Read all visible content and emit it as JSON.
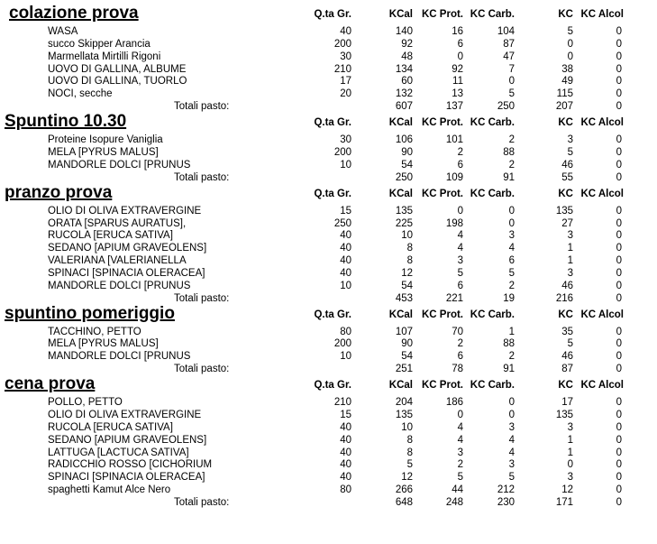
{
  "sections": [
    {
      "title": "colazione prova",
      "columns": [
        "Q.ta Gr.",
        "KCal",
        "KC Prot.",
        "KC Carb.",
        "KC",
        "KC Alcol"
      ],
      "rows": [
        {
          "name": "WASA",
          "values": [
            40,
            140,
            16,
            104,
            5,
            0
          ]
        },
        {
          "name": "succo Skipper Arancia",
          "values": [
            200,
            92,
            6,
            87,
            0,
            0
          ]
        },
        {
          "name": "Marmellata Mirtilli Rigoni",
          "values": [
            30,
            48,
            0,
            47,
            0,
            0
          ]
        },
        {
          "name": "UOVO DI GALLINA, ALBUME",
          "values": [
            210,
            134,
            92,
            7,
            38,
            0
          ]
        },
        {
          "name": "UOVO DI GALLINA, TUORLO",
          "values": [
            17,
            60,
            11,
            0,
            49,
            0
          ]
        },
        {
          "name": "NOCI, secche",
          "values": [
            20,
            132,
            13,
            5,
            115,
            0
          ]
        }
      ],
      "totals": {
        "label": "Totali pasto:",
        "values": [
          607,
          137,
          250,
          207,
          0
        ]
      }
    },
    {
      "title": "Spuntino 10.30",
      "columns": [
        "Q.ta Gr.",
        "KCal",
        "KC Prot.",
        "KC Carb.",
        "KC",
        "KC Alcol"
      ],
      "rows": [
        {
          "name": "Proteine Isopure Vaniglia",
          "values": [
            30,
            106,
            101,
            2,
            3,
            0
          ]
        },
        {
          "name": "MELA [PYRUS MALUS]",
          "values": [
            200,
            90,
            2,
            88,
            5,
            0
          ]
        },
        {
          "name": "MANDORLE DOLCI [PRUNUS",
          "values": [
            10,
            54,
            6,
            2,
            46,
            0
          ]
        }
      ],
      "totals": {
        "label": "Totali pasto:",
        "values": [
          250,
          109,
          91,
          55,
          0
        ]
      }
    },
    {
      "title": "pranzo prova",
      "columns": [
        "Q.ta Gr.",
        "KCal",
        "KC Prot.",
        "KC Carb.",
        "KC",
        "KC Alcol"
      ],
      "rows": [
        {
          "name": "OLIO DI OLIVA EXTRAVERGINE",
          "values": [
            15,
            135,
            0,
            0,
            135,
            0
          ]
        },
        {
          "name": "ORATA [SPARUS AURATUS],",
          "values": [
            250,
            225,
            198,
            0,
            27,
            0
          ]
        },
        {
          "name": "RUCOLA [ERUCA SATIVA]",
          "values": [
            40,
            10,
            4,
            3,
            3,
            0
          ]
        },
        {
          "name": "SEDANO [APIUM GRAVEOLENS]",
          "values": [
            40,
            8,
            4,
            4,
            1,
            0
          ]
        },
        {
          "name": "VALERIANA [VALERIANELLA",
          "values": [
            40,
            8,
            3,
            6,
            1,
            0
          ]
        },
        {
          "name": "SPINACI [SPINACIA OLERACEA]",
          "values": [
            40,
            12,
            5,
            5,
            3,
            0
          ]
        },
        {
          "name": "MANDORLE DOLCI [PRUNUS",
          "values": [
            10,
            54,
            6,
            2,
            46,
            0
          ]
        }
      ],
      "totals": {
        "label": "Totali pasto:",
        "values": [
          453,
          221,
          19,
          216,
          0
        ]
      }
    },
    {
      "title": "spuntino pomeriggio",
      "columns": [
        "Q.ta Gr.",
        "KCal",
        "KC Prot.",
        "KC Carb.",
        "KC",
        "KC Alcol"
      ],
      "rows": [
        {
          "name": "TACCHINO, PETTO",
          "values": [
            80,
            107,
            70,
            1,
            35,
            0
          ]
        },
        {
          "name": "MELA [PYRUS MALUS]",
          "values": [
            200,
            90,
            2,
            88,
            5,
            0
          ]
        },
        {
          "name": "MANDORLE DOLCI [PRUNUS",
          "values": [
            10,
            54,
            6,
            2,
            46,
            0
          ]
        }
      ],
      "totals": {
        "label": "Totali pasto:",
        "values": [
          251,
          78,
          91,
          87,
          0
        ]
      }
    },
    {
      "title": "cena prova",
      "columns": [
        "Q.ta Gr.",
        "KCal",
        "KC Prot.",
        "KC Carb.",
        "KC",
        "KC Alcol"
      ],
      "rows": [
        {
          "name": "POLLO, PETTO",
          "values": [
            210,
            204,
            186,
            0,
            17,
            0
          ]
        },
        {
          "name": "OLIO DI OLIVA EXTRAVERGINE",
          "values": [
            15,
            135,
            0,
            0,
            135,
            0
          ]
        },
        {
          "name": "RUCOLA [ERUCA SATIVA]",
          "values": [
            40,
            10,
            4,
            3,
            3,
            0
          ]
        },
        {
          "name": "SEDANO [APIUM GRAVEOLENS]",
          "values": [
            40,
            8,
            4,
            4,
            1,
            0
          ]
        },
        {
          "name": "LATTUGA [LACTUCA SATIVA]",
          "values": [
            40,
            8,
            3,
            4,
            1,
            0
          ]
        },
        {
          "name": "RADICCHIO ROSSO [CICHORIUM",
          "values": [
            40,
            5,
            2,
            3,
            0,
            0
          ]
        },
        {
          "name": "SPINACI [SPINACIA OLERACEA]",
          "values": [
            40,
            12,
            5,
            5,
            3,
            0
          ]
        },
        {
          "name": "spaghetti Kamut Alce Nero",
          "values": [
            80,
            266,
            44,
            212,
            12,
            0
          ]
        }
      ],
      "totals": {
        "label": "Totali pasto:",
        "values": [
          648,
          248,
          230,
          171,
          0
        ]
      }
    }
  ]
}
